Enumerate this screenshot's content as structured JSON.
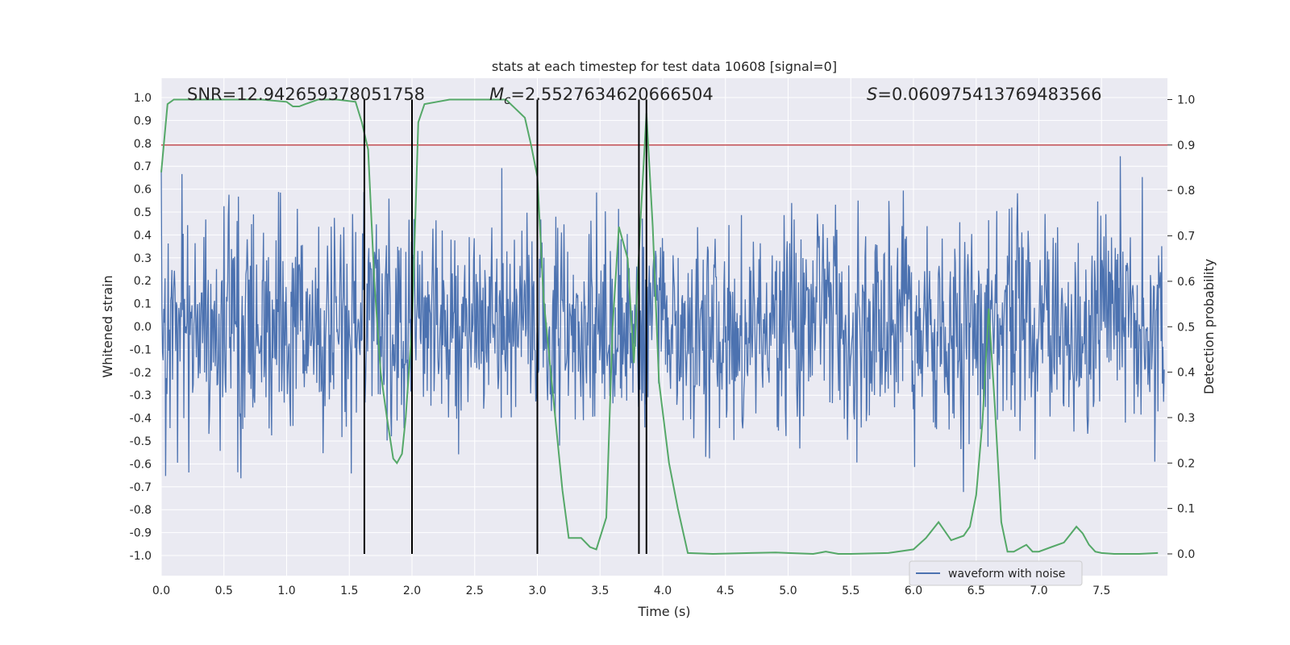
{
  "chart_data": {
    "type": "line",
    "title": "stats at each timestep for test data 10608 [signal=0]",
    "xlabel": "Time (s)",
    "ylabel": "Whitened strain",
    "ylabel_right": "Detection probability",
    "xlim": [
      0.0,
      8.0
    ],
    "ylim": [
      -1.05,
      1.05
    ],
    "ylim_right": [
      -0.05,
      1.04
    ],
    "x_ticks": [
      "0.0",
      "0.5",
      "1.0",
      "1.5",
      "2.0",
      "2.5",
      "3.0",
      "3.5",
      "4.0",
      "4.5",
      "5.0",
      "5.5",
      "6.0",
      "6.5",
      "7.0",
      "7.5"
    ],
    "y_ticks": [
      "1.0",
      "0.9",
      "0.8",
      "0.7",
      "0.6",
      "0.5",
      "0.4",
      "0.3",
      "0.2",
      "0.1",
      "0.0",
      "-0.1",
      "-0.2",
      "-0.3",
      "-0.4",
      "-0.5",
      "-0.6",
      "-0.7",
      "-0.8",
      "-0.9",
      "-1.0"
    ],
    "y_ticks_right": [
      "1.0",
      "0.9",
      "0.8",
      "0.7",
      "0.6",
      "0.5",
      "0.4",
      "0.3",
      "0.2",
      "0.1",
      "0.0"
    ],
    "grid": true,
    "annotations": {
      "snr": "SNR=12.942659378051758",
      "mc_symbol": "M",
      "mc_sub": "c",
      "mc_value": "=2.5527634620666504",
      "s_symbol": "S",
      "s_value": "=0.060975413769483566"
    },
    "legend": {
      "label": "waveform with noise",
      "position": "lower-right"
    },
    "threshold": {
      "value": 0.9,
      "axis": "right",
      "color": "#c44e52"
    },
    "vertical_markers": [
      1.62,
      2.0,
      3.0,
      3.81,
      3.87
    ],
    "series": [
      {
        "name": "waveform with noise",
        "axis": "left",
        "color": "#4c72b0",
        "kind": "noise",
        "samples": 1600,
        "typical_amplitude": 0.45,
        "peak_amplitude": 0.98,
        "x_range": [
          0.0,
          8.0
        ]
      },
      {
        "name": "detection probability",
        "axis": "right",
        "color": "#55a868",
        "x": [
          0.0,
          0.05,
          0.1,
          0.2,
          0.4,
          0.6,
          0.8,
          1.0,
          1.05,
          1.1,
          1.15,
          1.25,
          1.4,
          1.55,
          1.6,
          1.65,
          1.7,
          1.75,
          1.8,
          1.85,
          1.88,
          1.92,
          1.95,
          2.0,
          2.05,
          2.1,
          2.2,
          2.3,
          2.45,
          2.6,
          2.75,
          2.9,
          2.95,
          3.0,
          3.05,
          3.1,
          3.15,
          3.2,
          3.25,
          3.35,
          3.42,
          3.47,
          3.55,
          3.6,
          3.65,
          3.72,
          3.77,
          3.82,
          3.87,
          3.92,
          3.97,
          4.05,
          4.12,
          4.2,
          4.4,
          4.7,
          4.9,
          5.0,
          5.2,
          5.3,
          5.4,
          5.5,
          5.8,
          6.0,
          6.1,
          6.2,
          6.25,
          6.3,
          6.4,
          6.45,
          6.5,
          6.55,
          6.6,
          6.65,
          6.7,
          6.75,
          6.8,
          6.9,
          6.95,
          7.0,
          7.1,
          7.2,
          7.3,
          7.35,
          7.4,
          7.45,
          7.5,
          7.6,
          7.8,
          7.95
        ],
        "values": [
          0.84,
          0.99,
          1.0,
          1.0,
          1.0,
          1.0,
          1.0,
          0.995,
          0.985,
          0.985,
          0.99,
          1.0,
          1.0,
          0.995,
          0.95,
          0.89,
          0.6,
          0.4,
          0.3,
          0.21,
          0.2,
          0.22,
          0.3,
          0.5,
          0.95,
          0.99,
          0.995,
          1.0,
          1.0,
          1.0,
          1.0,
          0.96,
          0.9,
          0.83,
          0.56,
          0.42,
          0.28,
          0.14,
          0.035,
          0.035,
          0.015,
          0.01,
          0.08,
          0.5,
          0.72,
          0.65,
          0.42,
          0.72,
          0.97,
          0.72,
          0.38,
          0.2,
          0.1,
          0.002,
          0.0,
          0.002,
          0.003,
          0.002,
          0.0,
          0.005,
          0.0,
          0.0,
          0.002,
          0.01,
          0.035,
          0.07,
          0.05,
          0.03,
          0.04,
          0.06,
          0.13,
          0.29,
          0.54,
          0.32,
          0.07,
          0.005,
          0.005,
          0.02,
          0.005,
          0.005,
          0.015,
          0.025,
          0.06,
          0.045,
          0.02,
          0.005,
          0.002,
          0.0,
          0.0,
          0.002
        ]
      }
    ]
  }
}
